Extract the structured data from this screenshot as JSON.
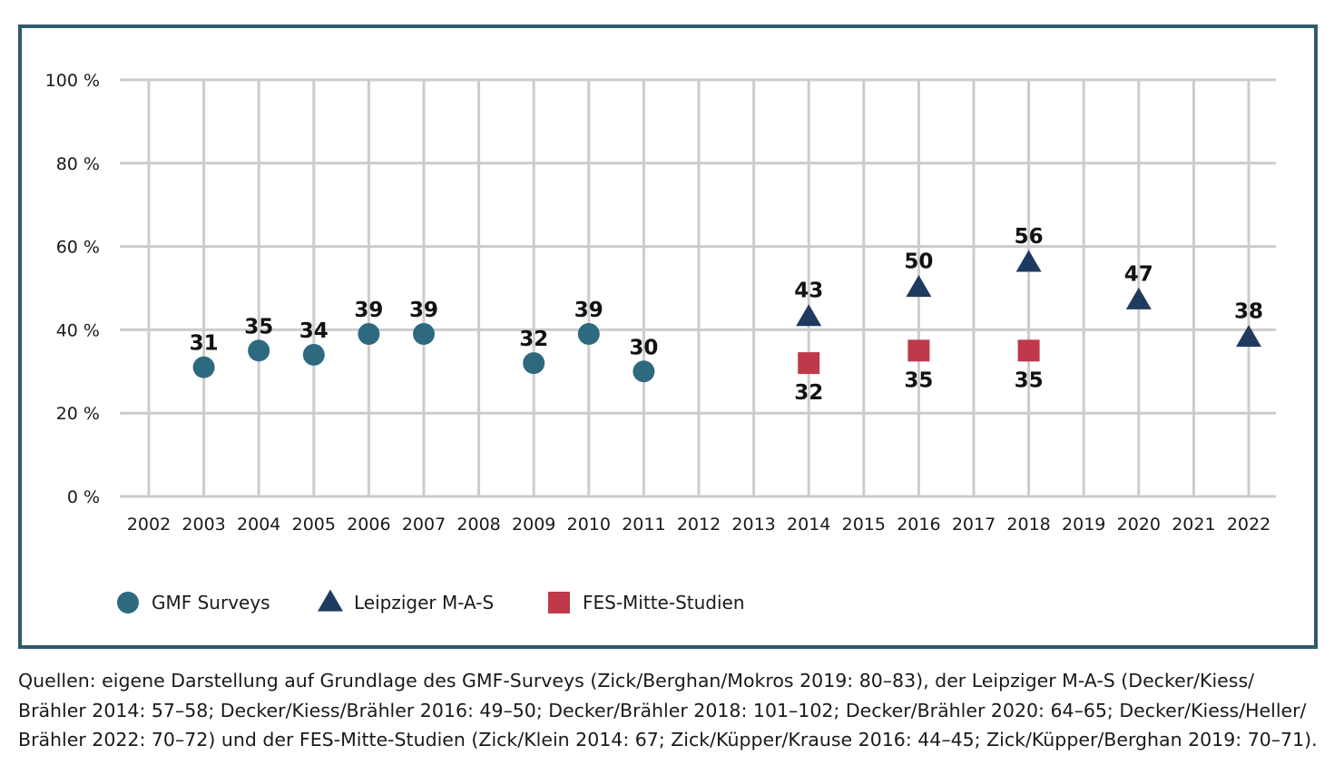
{
  "chart_data": {
    "type": "scatter",
    "title": "",
    "xlabel": "",
    "ylabel": "",
    "ylim": [
      0,
      100
    ],
    "y_ticks": [
      {
        "value": 0,
        "label": "0 %"
      },
      {
        "value": 20,
        "label": "20 %"
      },
      {
        "value": 40,
        "label": "40 %"
      },
      {
        "value": 60,
        "label": "60 %"
      },
      {
        "value": 80,
        "label": "80 %"
      },
      {
        "value": 100,
        "label": "100 %"
      }
    ],
    "x_categories": [
      "2002",
      "2003",
      "2004",
      "2005",
      "2006",
      "2007",
      "2008",
      "2009",
      "2010",
      "2011",
      "2012",
      "2013",
      "2014",
      "2015",
      "2016",
      "2017",
      "2018",
      "2019",
      "2020",
      "2021",
      "2022"
    ],
    "grid": true,
    "legend_position": "bottom-left",
    "series": [
      {
        "name": "GMF Surveys",
        "marker": "circle",
        "color": "#2d6a80",
        "label_position": "above",
        "points": [
          {
            "x": "2003",
            "y": 31
          },
          {
            "x": "2004",
            "y": 35
          },
          {
            "x": "2005",
            "y": 34
          },
          {
            "x": "2006",
            "y": 39
          },
          {
            "x": "2007",
            "y": 39
          },
          {
            "x": "2009",
            "y": 32
          },
          {
            "x": "2010",
            "y": 39
          },
          {
            "x": "2011",
            "y": 30
          }
        ]
      },
      {
        "name": "Leipziger M-A-S",
        "marker": "triangle",
        "color": "#1f3a5f",
        "label_position": "above",
        "points": [
          {
            "x": "2014",
            "y": 43
          },
          {
            "x": "2016",
            "y": 50
          },
          {
            "x": "2018",
            "y": 56
          },
          {
            "x": "2020",
            "y": 47
          },
          {
            "x": "2022",
            "y": 38
          }
        ]
      },
      {
        "name": "FES-Mitte-Studien",
        "marker": "square",
        "color": "#c0394a",
        "label_position": "below",
        "points": [
          {
            "x": "2014",
            "y": 32
          },
          {
            "x": "2016",
            "y": 35
          },
          {
            "x": "2018",
            "y": 35
          }
        ]
      }
    ]
  },
  "source": {
    "lines": [
      "Quellen: eigene Darstellung auf Grundlage des GMF-Surveys (Zick/Berghan/Mokros 2019: 80–83), der Leipziger M-A-S (Decker/Kiess/",
      "Brähler 2014: 57–58; Decker/Kiess/Brähler 2016: 49–50; Decker/Brähler 2018: 101–102; Decker/Brähler 2020: 64–65; Decker/Kiess/Heller/",
      "Brähler 2022: 70–72) und der FES-Mitte-Studien (Zick/Klein 2014: 67; Zick/Küpper/Krause 2016: 44–45; Zick/Küpper/Berghan 2019: 70–71)."
    ]
  }
}
